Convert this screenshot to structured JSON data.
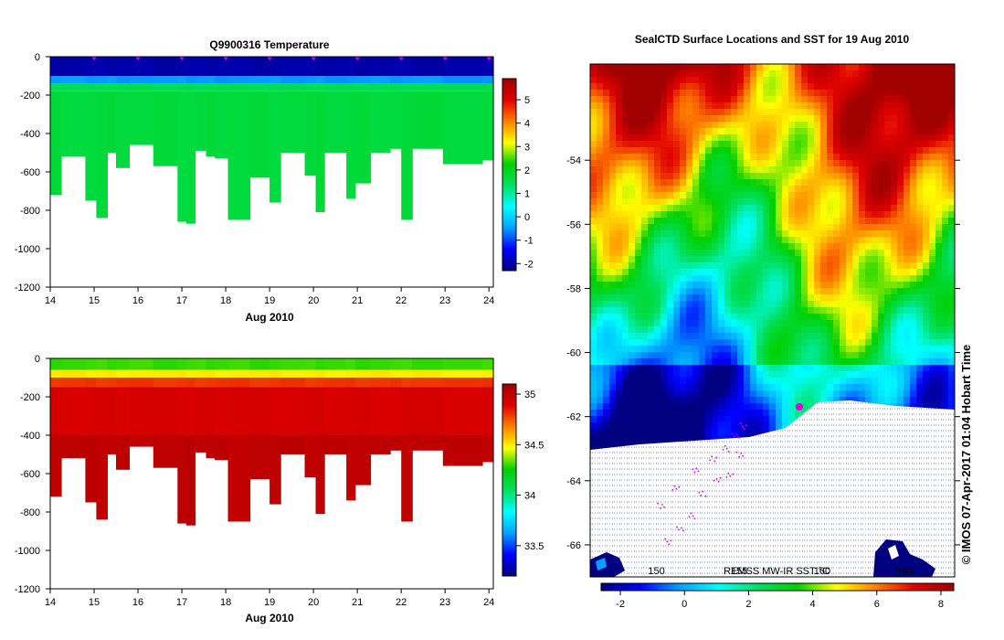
{
  "colors": {
    "ocean_ramp": [
      "#000080",
      "#0000ff",
      "#00a0ff",
      "#00ffff",
      "#00e060",
      "#00d000",
      "#ffff00",
      "#ff8000",
      "#e00000",
      "#a00000"
    ],
    "track_marker": "#e000e0",
    "land_hatch": "#000080"
  },
  "chart_data": [
    {
      "id": "temperature-section",
      "type": "heatmap",
      "title": "Q9900316  Temperature",
      "xlabel": "Aug 2010",
      "ylabel": "",
      "xlim": [
        14,
        24.1
      ],
      "ylim": [
        -1200,
        0
      ],
      "x_ticks": [
        "14",
        "15",
        "16",
        "17",
        "18",
        "19",
        "20",
        "21",
        "22",
        "23",
        "24"
      ],
      "y_ticks": [
        "0",
        "-200",
        "-400",
        "-600",
        "-800",
        "-1000",
        "-1200"
      ],
      "colorbar": {
        "range": [
          -2.3,
          5.9
        ],
        "ticks": [
          "-2",
          "-1",
          "0",
          "1",
          "2",
          "3",
          "4",
          "5"
        ]
      },
      "layers": [
        {
          "from_depth": 0,
          "to_depth": -100,
          "value": -2.0
        },
        {
          "from_depth": -100,
          "to_depth": -140,
          "value": -0.5
        },
        {
          "from_depth": -140,
          "to_depth": -180,
          "value": 1.5
        },
        {
          "from_depth": -180,
          "to_depth": "bottom",
          "value": 1.7
        }
      ],
      "profile_marker_times": [
        15.0,
        16.0,
        17.0,
        18.0,
        19.0,
        20.0,
        21.0,
        22.0,
        23.0,
        24.0
      ],
      "profiles": [
        {
          "t_start": 14.0,
          "t_end": 14.25,
          "bottom": -720
        },
        {
          "t_start": 14.25,
          "t_end": 14.8,
          "bottom": -520
        },
        {
          "t_start": 14.8,
          "t_end": 15.05,
          "bottom": -750
        },
        {
          "t_start": 15.05,
          "t_end": 15.3,
          "bottom": -840
        },
        {
          "t_start": 15.3,
          "t_end": 15.5,
          "bottom": -500
        },
        {
          "t_start": 15.5,
          "t_end": 15.8,
          "bottom": -580
        },
        {
          "t_start": 15.8,
          "t_end": 16.35,
          "bottom": -460
        },
        {
          "t_start": 16.35,
          "t_end": 16.9,
          "bottom": -570
        },
        {
          "t_start": 16.9,
          "t_end": 17.1,
          "bottom": -860
        },
        {
          "t_start": 17.1,
          "t_end": 17.3,
          "bottom": -870
        },
        {
          "t_start": 17.3,
          "t_end": 17.55,
          "bottom": -490
        },
        {
          "t_start": 17.55,
          "t_end": 17.75,
          "bottom": -520
        },
        {
          "t_start": 17.75,
          "t_end": 18.05,
          "bottom": -530
        },
        {
          "t_start": 18.05,
          "t_end": 18.55,
          "bottom": -850
        },
        {
          "t_start": 18.55,
          "t_end": 19.0,
          "bottom": -630
        },
        {
          "t_start": 19.0,
          "t_end": 19.25,
          "bottom": -760
        },
        {
          "t_start": 19.25,
          "t_end": 19.8,
          "bottom": -500
        },
        {
          "t_start": 19.8,
          "t_end": 20.05,
          "bottom": -620
        },
        {
          "t_start": 20.05,
          "t_end": 20.25,
          "bottom": -810
        },
        {
          "t_start": 20.25,
          "t_end": 20.75,
          "bottom": -500
        },
        {
          "t_start": 20.75,
          "t_end": 20.95,
          "bottom": -740
        },
        {
          "t_start": 20.95,
          "t_end": 21.3,
          "bottom": -660
        },
        {
          "t_start": 21.3,
          "t_end": 21.75,
          "bottom": -500
        },
        {
          "t_start": 21.75,
          "t_end": 22.0,
          "bottom": -480
        },
        {
          "t_start": 22.0,
          "t_end": 22.25,
          "bottom": -850
        },
        {
          "t_start": 22.25,
          "t_end": 22.95,
          "bottom": -480
        },
        {
          "t_start": 22.95,
          "t_end": 23.85,
          "bottom": -560
        },
        {
          "t_start": 23.85,
          "t_end": 24.1,
          "bottom": -540
        }
      ]
    },
    {
      "id": "salinity-section",
      "type": "heatmap",
      "title": "",
      "xlabel": "Aug 2010",
      "ylabel": "",
      "xlim": [
        14,
        24.1
      ],
      "ylim": [
        -1200,
        0
      ],
      "x_ticks": [
        "14",
        "15",
        "16",
        "17",
        "18",
        "19",
        "20",
        "21",
        "22",
        "23",
        "24"
      ],
      "y_ticks": [
        "0",
        "-200",
        "-400",
        "-600",
        "-800",
        "-1000",
        "-1200"
      ],
      "colorbar": {
        "range": [
          33.2,
          35.1
        ],
        "ticks": [
          "33.5",
          "34",
          "34.5",
          "35"
        ]
      },
      "layers": [
        {
          "from_depth": 0,
          "to_depth": -60,
          "value": 34.3
        },
        {
          "from_depth": -60,
          "to_depth": -100,
          "value": 34.5
        },
        {
          "from_depth": -100,
          "to_depth": -150,
          "value": 34.8
        },
        {
          "from_depth": -150,
          "to_depth": -400,
          "value": 34.92
        },
        {
          "from_depth": -400,
          "to_depth": "bottom",
          "value": 35.0
        }
      ],
      "profiles": "same as temperature-section"
    },
    {
      "id": "sst-map",
      "type": "heatmap",
      "title": "SealCTD Surface Locations and SST for 19 Aug 2010",
      "xlabel": "",
      "ylabel": "",
      "source_label": "REMSS MW-IR SST °C",
      "x_ticks_inside_map": [
        "150",
        "155",
        "160",
        "165"
      ],
      "y_ticks": [
        "-54",
        "-56",
        "-58",
        "-60",
        "-62",
        "-64",
        "-66"
      ],
      "ylim": [
        -67.0,
        -51.0
      ],
      "colorbar": {
        "range": [
          -2.6,
          8.4
        ],
        "ticks": [
          "-2",
          "0",
          "2",
          "4",
          "6",
          "8"
        ]
      },
      "sst_zones": [
        {
          "zone": "north-east warm",
          "approx_sst": 7
        },
        {
          "zone": "central band",
          "approx_sst": 2
        },
        {
          "zone": "south-west cold",
          "approx_sst": -1.5
        }
      ],
      "track_sample": [
        [
          150.3,
          -64.8
        ],
        [
          151.2,
          -64.2
        ],
        [
          152.3,
          -63.7
        ],
        [
          153.4,
          -63.3
        ],
        [
          154.2,
          -63.0
        ],
        [
          154.8,
          -62.6
        ],
        [
          155.3,
          -62.3
        ],
        [
          155.0,
          -63.2
        ],
        [
          154.4,
          -63.8
        ],
        [
          153.7,
          -64.0
        ],
        [
          152.8,
          -64.4
        ],
        [
          152.1,
          -65.1
        ],
        [
          151.4,
          -65.5
        ],
        [
          150.7,
          -65.9
        ]
      ],
      "credit": "© IMOS 07-Apr-2017 01:04 Hobart Time"
    }
  ]
}
